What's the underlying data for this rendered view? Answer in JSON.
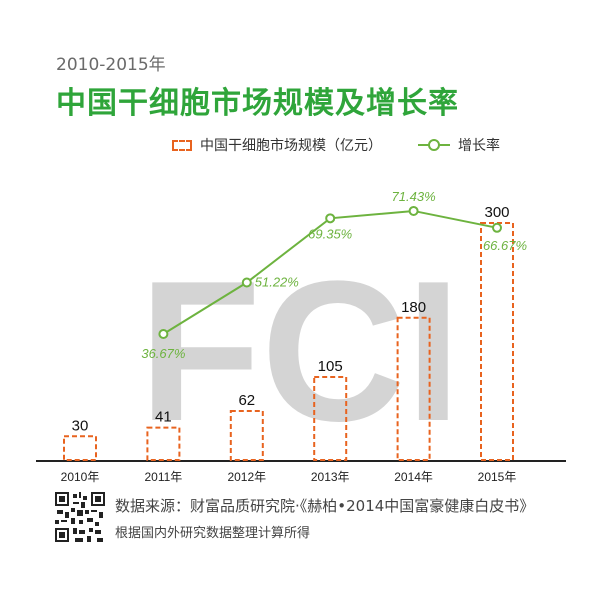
{
  "header": {
    "subtitle": "2010-2015年",
    "title": "中国干细胞市场规模及增长率"
  },
  "watermark": "FCI",
  "footer": {
    "source": "数据来源：财富品质研究院·《赫柏•2014中国富豪健康白皮书》",
    "note": "根据国内外研究数据整理计算所得",
    "qr_icon": "qr-code-icon"
  },
  "colors": {
    "title": "#2fa53a",
    "bars": "#e8631f",
    "line": "#6db33f",
    "watermark": "#d4d4d4"
  },
  "chart_data": {
    "type": "bar",
    "categories": [
      "2010年",
      "2011年",
      "2012年",
      "2013年",
      "2014年",
      "2015年"
    ],
    "series": [
      {
        "name": "中国干细胞市场规模（亿元）",
        "type": "bar",
        "values": [
          30,
          41,
          62,
          105,
          180,
          300
        ]
      },
      {
        "name": "增长率",
        "type": "line",
        "values": [
          null,
          36.67,
          51.22,
          69.35,
          71.43,
          66.67
        ],
        "labels": [
          "",
          "36.67%",
          "51.22%",
          "69.35%",
          "71.43%",
          "66.67%"
        ]
      }
    ],
    "legend": "top",
    "grid": false
  }
}
